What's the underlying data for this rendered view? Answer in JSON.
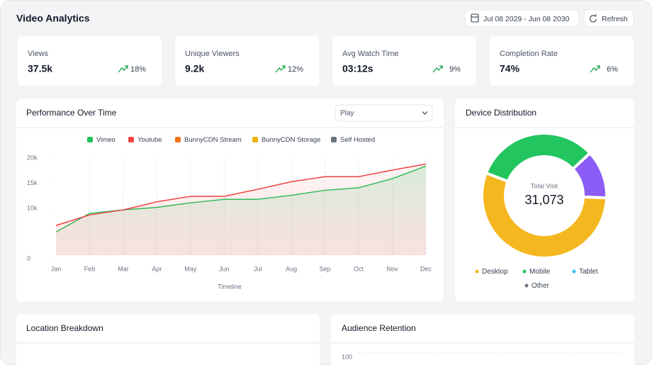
{
  "header": {
    "title": "Video Analytics",
    "date_range": "Jul 08 2029 - Jun 08 2030",
    "refresh": "Refresh"
  },
  "kpis": [
    {
      "label": "Views",
      "value": "37.5k",
      "change": "18%"
    },
    {
      "label": "Unique Viewers",
      "value": "9.2k",
      "change": "12%"
    },
    {
      "label": "Avg Watch Time",
      "value": "03:12s",
      "change": "9%"
    },
    {
      "label": "Completion Rate",
      "value": "74%",
      "change": "6%"
    }
  ],
  "performance": {
    "title": "Performance Over Time",
    "filter": "Play",
    "chart_data": {
      "type": "line",
      "x_label": "Timeline",
      "categories": [
        "Jan",
        "Feb",
        "Mar",
        "Apr",
        "May",
        "Jun",
        "Jul",
        "Aug",
        "Sep",
        "Oct",
        "Nov",
        "Dec"
      ],
      "series": [
        {
          "name": "Vimeo",
          "color": "#22c55e",
          "values": [
            5300,
            9000,
            9700,
            10200,
            11100,
            11800,
            11800,
            12600,
            13600,
            14100,
            15900,
            18400
          ]
        },
        {
          "name": "Youtube",
          "color": "#ef4444",
          "values": [
            6600,
            8700,
            9700,
            11300,
            12400,
            12400,
            13800,
            15300,
            16300,
            16300,
            17600,
            18800
          ]
        },
        {
          "name": "BunnyCDN Stream",
          "color": "#f97316",
          "values": [
            null,
            null,
            null,
            null,
            null,
            null,
            null,
            null,
            null,
            null,
            null,
            null
          ]
        },
        {
          "name": "BunnyCDN Storage",
          "color": "#eab308",
          "values": [
            null,
            null,
            null,
            null,
            null,
            null,
            null,
            null,
            null,
            null,
            null,
            null
          ]
        },
        {
          "name": "Self Hosted",
          "color": "#6b7280",
          "values": [
            null,
            null,
            null,
            null,
            null,
            null,
            null,
            null,
            null,
            null,
            null,
            null
          ]
        }
      ],
      "ylim": [
        0,
        20000
      ],
      "yticks": [
        0,
        {
          "value": 10000,
          "label": "10k"
        },
        {
          "value": 15000,
          "label": "15k"
        },
        {
          "value": 20000,
          "label": "20k"
        }
      ],
      "x_grid": true
    }
  },
  "devices": {
    "title": "Device Distribution",
    "chart_data": {
      "type": "donut",
      "center_label": "Total Visit",
      "total": "31,073",
      "slices": [
        {
          "name": "Desktop",
          "value": 17200,
          "color": "#f4b71f",
          "legend_color": "#f4b71f"
        },
        {
          "name": "Mobile",
          "value": 10000,
          "color": "#22c55e",
          "legend_color": "#22c55e"
        },
        {
          "name": "Tablet",
          "value": 3873,
          "color": "#8b5cf6",
          "legend_color": "#38bdf8"
        },
        {
          "name": "Other",
          "value": 0,
          "color": "#6b7280",
          "legend_color": "#6b7280"
        }
      ]
    }
  },
  "location": {
    "title": "Location Breakdown"
  },
  "retention": {
    "title": "Audience Retention",
    "chart_data": {
      "type": "line",
      "yticks": [
        100
      ]
    }
  }
}
